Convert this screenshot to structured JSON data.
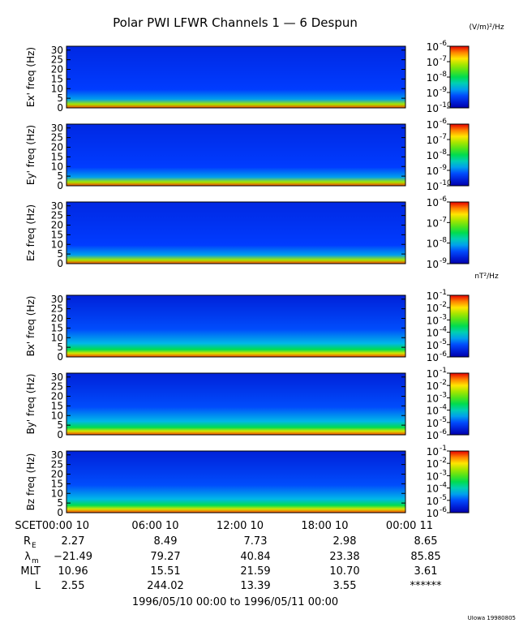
{
  "title": "Polar PWI LFWR Channels 1 — 6 Despun",
  "chart_data": {
    "type": "heatmap",
    "title": "Polar PWI LFWR Channels 1 — 6 Despun",
    "x_tick_labels": [
      "SCET00:00 10",
      "06:00 10",
      "12:00 10",
      "18:00 10",
      "00:00 11"
    ],
    "y_ticks": [
      0,
      5,
      10,
      15,
      20,
      25,
      30
    ],
    "ylim": [
      0,
      32
    ],
    "panels": [
      {
        "ylabel": "Ex' freq (Hz)",
        "unit": "(V/m)²/Hz",
        "cb_exponents": [
          "-6",
          "-7",
          "-8",
          "-9",
          "-10"
        ],
        "cb_prefix": "10",
        "cb_min_exp": -10,
        "cb_max_exp": -6
      },
      {
        "ylabel": "Ey' freq (Hz)",
        "unit": "",
        "cb_exponents": [
          "-6",
          "-7",
          "-8",
          "-9",
          "-10"
        ],
        "cb_prefix": "10",
        "cb_min_exp": -10,
        "cb_max_exp": -6
      },
      {
        "ylabel": "Ez freq (Hz)",
        "unit": "",
        "cb_exponents": [
          "-6",
          "-7",
          "-8",
          "-9"
        ],
        "cb_prefix": "10",
        "cb_min_exp": -9,
        "cb_max_exp": -6
      },
      {
        "ylabel": "Bx' freq (Hz)",
        "unit": "nT²/Hz",
        "cb_exponents": [
          "-1",
          "-2",
          "-3",
          "-4",
          "-5",
          "-6"
        ],
        "cb_prefix": "10",
        "cb_min_exp": -6,
        "cb_max_exp": -1
      },
      {
        "ylabel": "By' freq (Hz)",
        "unit": "",
        "cb_exponents": [
          "-1",
          "-2",
          "-3",
          "-4",
          "-5",
          "-6"
        ],
        "cb_prefix": "10",
        "cb_min_exp": -6,
        "cb_max_exp": -1
      },
      {
        "ylabel": "Bz freq (Hz)",
        "unit": "",
        "cb_exponents": [
          "-1",
          "-2",
          "-3",
          "-4",
          "-5",
          "-6"
        ],
        "cb_prefix": "10",
        "cb_min_exp": -6,
        "cb_max_exp": -1
      }
    ],
    "ephemeris": {
      "rows": [
        {
          "label": "R",
          "sub": "E",
          "values": [
            "2.27",
            "8.49",
            "7.73",
            "2.98",
            "8.65"
          ]
        },
        {
          "label": "λ",
          "sub": "m",
          "values": [
            "−21.49",
            "79.27",
            "40.84",
            "23.38",
            "85.85"
          ]
        },
        {
          "label": "MLT",
          "sub": "",
          "values": [
            "10.96",
            "15.51",
            "21.59",
            "10.70",
            "3.61"
          ]
        },
        {
          "label": "L",
          "sub": "",
          "values": [
            "2.55",
            "244.02",
            "13.39",
            "3.55",
            "******"
          ]
        }
      ]
    },
    "date_range": "1996/05/10 00:00 to 1996/05/11 00:00",
    "grid": false
  },
  "footer_credit": "UIowa 19980805"
}
